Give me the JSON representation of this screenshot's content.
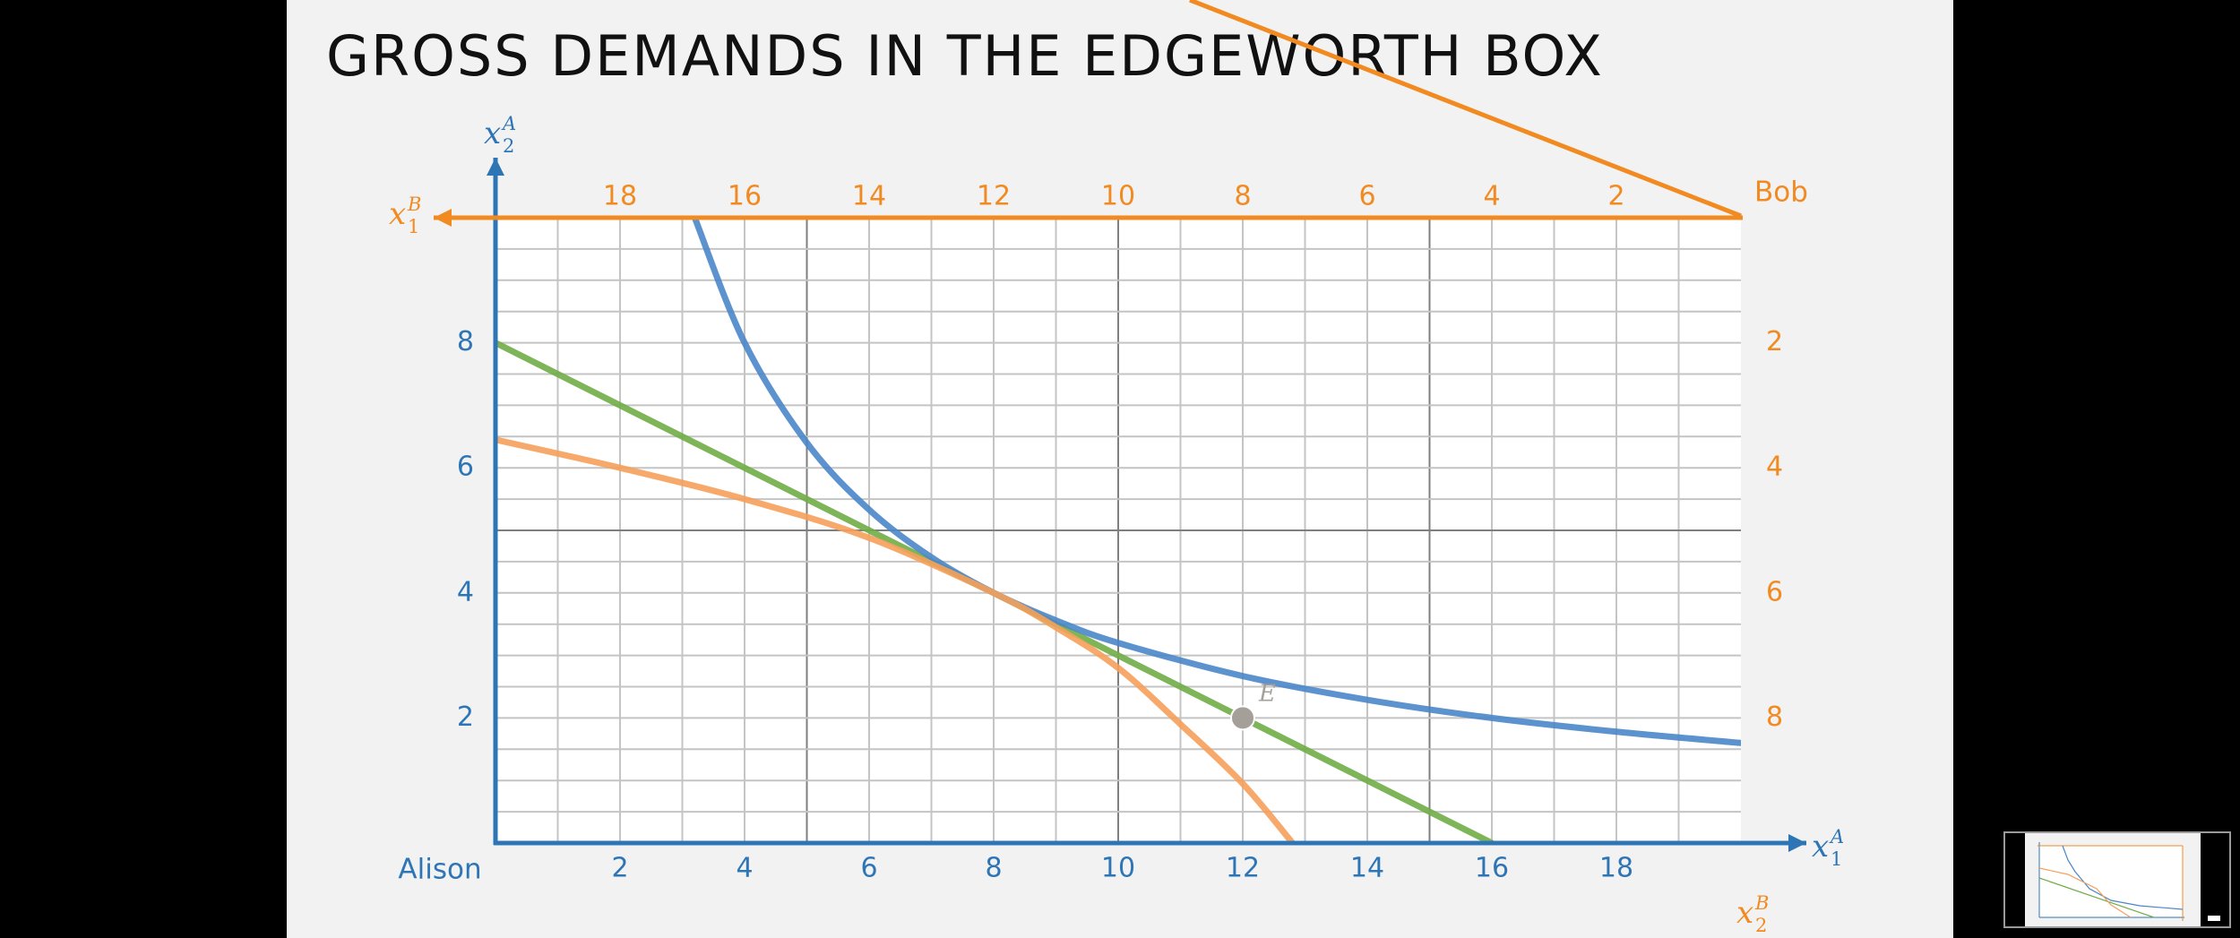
{
  "slide": {
    "title": "GROSS DEMANDS IN THE EDGEWORTH BOX"
  },
  "chart_data": {
    "type": "line",
    "title": "GROSS DEMANDS IN THE EDGEWORTH BOX",
    "alison": {
      "origin_label": "Alison",
      "x_axis_label": {
        "base": "x",
        "sub": "1",
        "sup": "A"
      },
      "y_axis_label": {
        "base": "x",
        "sub": "2",
        "sup": "A"
      },
      "x_ticks": [
        2,
        4,
        6,
        8,
        10,
        12,
        14,
        16,
        18
      ],
      "y_ticks": [
        2,
        4,
        6,
        8
      ],
      "xlim": [
        0,
        20
      ],
      "ylim": [
        0,
        10
      ]
    },
    "bob": {
      "origin_label": "Bob",
      "x_axis_label": {
        "base": "x",
        "sub": "1",
        "sup": "B"
      },
      "y_axis_label": {
        "base": "x",
        "sub": "2",
        "sup": "B"
      },
      "x_ticks": [
        2,
        4,
        6,
        8,
        10,
        12,
        14,
        16,
        18
      ],
      "y_ticks": [
        2,
        4,
        6,
        8
      ]
    },
    "grid": true,
    "endowment": {
      "label": "E",
      "x": 12,
      "y": 2
    },
    "series": [
      {
        "role": "budget-line",
        "color": "#70ad47",
        "points": [
          [
            0,
            8
          ],
          [
            16,
            0
          ]
        ]
      },
      {
        "role": "alison-indifference-curve",
        "color": "#4a86c8",
        "points": [
          [
            3.2,
            10
          ],
          [
            4,
            8
          ],
          [
            5,
            6.4
          ],
          [
            6,
            5.33
          ],
          [
            7,
            4.57
          ],
          [
            8,
            4
          ],
          [
            9,
            3.56
          ],
          [
            10,
            3.2
          ],
          [
            12,
            2.67
          ],
          [
            14,
            2.29
          ],
          [
            16,
            2
          ],
          [
            18,
            1.78
          ],
          [
            20,
            1.6
          ]
        ]
      },
      {
        "role": "bob-indifference-curve",
        "color": "#f5a05a",
        "points": [
          [
            0,
            6.45
          ],
          [
            2,
            6
          ],
          [
            4,
            5.5
          ],
          [
            6,
            4.88
          ],
          [
            8,
            4
          ],
          [
            9,
            3.45
          ],
          [
            10,
            2.8
          ],
          [
            11,
            1.9
          ],
          [
            12,
            0.95
          ],
          [
            12.8,
            0
          ]
        ]
      }
    ],
    "colors": {
      "alison_axis": "#2e75b6",
      "bob_axis": "#f28a22",
      "endowment_point": "#a49f98"
    }
  }
}
